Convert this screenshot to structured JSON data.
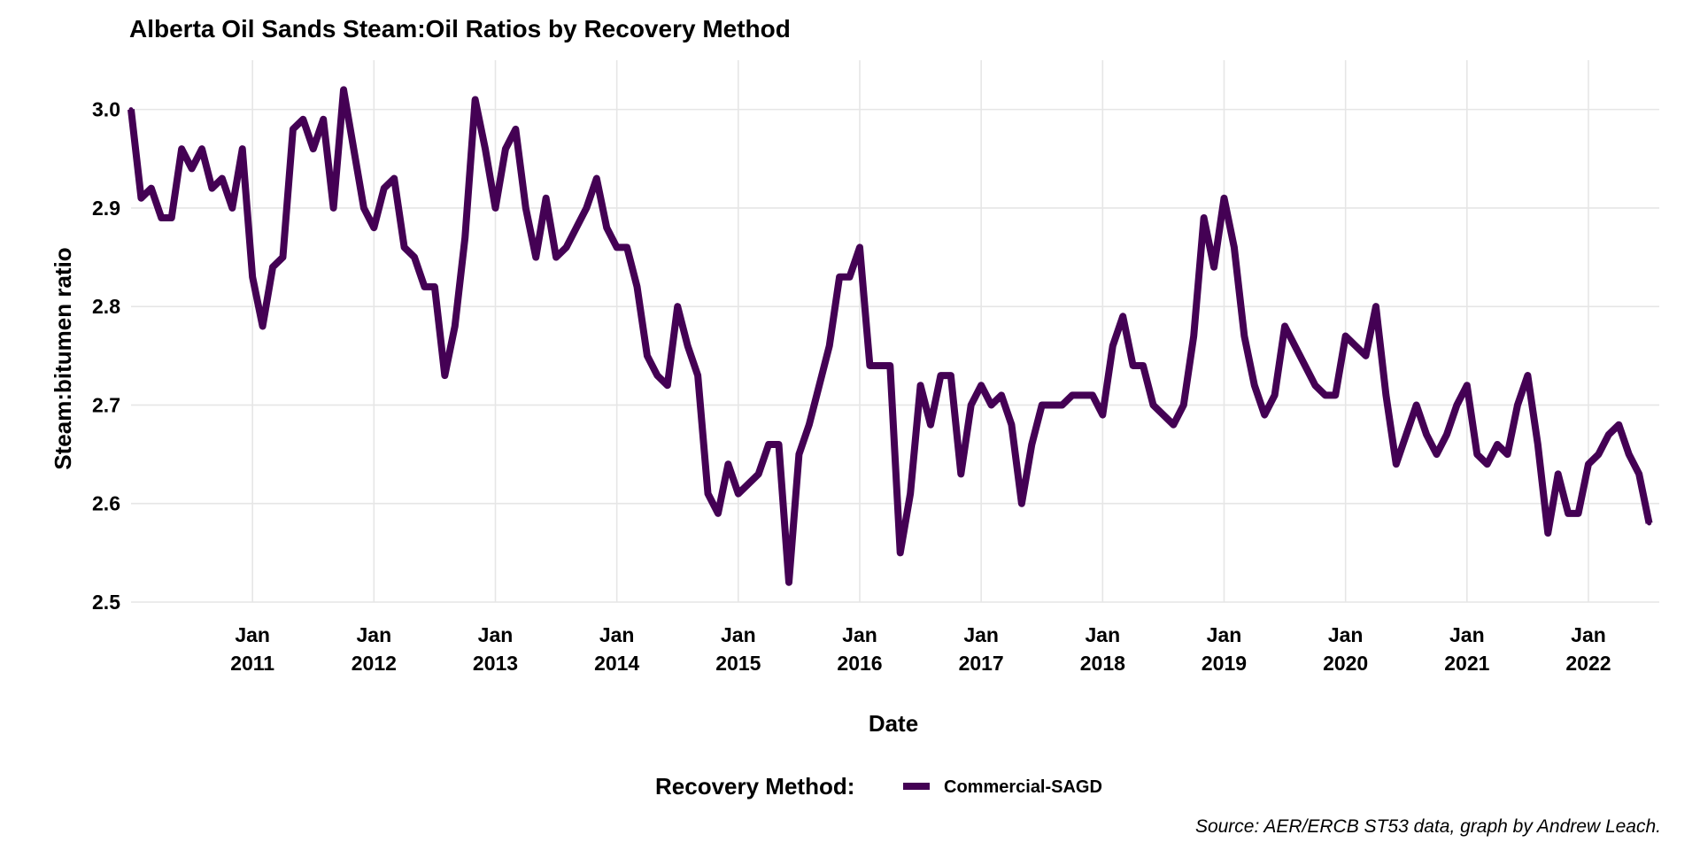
{
  "chart_data": {
    "type": "line",
    "title": "Alberta Oil Sands Steam:Oil Ratios by Recovery Method",
    "xlabel": "Date",
    "ylabel": "Steam:bitumen ratio",
    "ylim": [
      2.5,
      3.05
    ],
    "xlim": [
      "2010-01",
      "2022-08"
    ],
    "y_ticks": [
      "2.5",
      "2.6",
      "2.7",
      "2.8",
      "2.9",
      "3.0"
    ],
    "x_ticks": [
      {
        "line1": "Jan",
        "line2": "2011",
        "date": "2011-01"
      },
      {
        "line1": "Jan",
        "line2": "2012",
        "date": "2012-01"
      },
      {
        "line1": "Jan",
        "line2": "2013",
        "date": "2013-01"
      },
      {
        "line1": "Jan",
        "line2": "2014",
        "date": "2014-01"
      },
      {
        "line1": "Jan",
        "line2": "2015",
        "date": "2015-01"
      },
      {
        "line1": "Jan",
        "line2": "2016",
        "date": "2016-01"
      },
      {
        "line1": "Jan",
        "line2": "2017",
        "date": "2017-01"
      },
      {
        "line1": "Jan",
        "line2": "2018",
        "date": "2018-01"
      },
      {
        "line1": "Jan",
        "line2": "2019",
        "date": "2019-01"
      },
      {
        "line1": "Jan",
        "line2": "2020",
        "date": "2020-01"
      },
      {
        "line1": "Jan",
        "line2": "2021",
        "date": "2021-01"
      },
      {
        "line1": "Jan",
        "line2": "2022",
        "date": "2022-01"
      }
    ],
    "grid": true,
    "legend": {
      "title": "Recovery Method:",
      "position": "bottom"
    },
    "series": [
      {
        "name": "Commercial-SAGD",
        "color": "#440154",
        "start": "2010-01",
        "frequency": "monthly",
        "values": [
          3.0,
          2.91,
          2.92,
          2.89,
          2.89,
          2.96,
          2.94,
          2.96,
          2.92,
          2.93,
          2.9,
          2.96,
          2.83,
          2.78,
          2.84,
          2.85,
          2.98,
          2.99,
          2.96,
          2.99,
          2.9,
          3.02,
          2.96,
          2.9,
          2.88,
          2.92,
          2.93,
          2.86,
          2.85,
          2.82,
          2.82,
          2.73,
          2.78,
          2.87,
          3.01,
          2.96,
          2.9,
          2.96,
          2.98,
          2.9,
          2.85,
          2.91,
          2.85,
          2.86,
          2.88,
          2.9,
          2.93,
          2.88,
          2.86,
          2.86,
          2.82,
          2.75,
          2.73,
          2.72,
          2.8,
          2.76,
          2.73,
          2.61,
          2.59,
          2.64,
          2.61,
          2.62,
          2.63,
          2.66,
          2.66,
          2.52,
          2.65,
          2.68,
          2.72,
          2.76,
          2.83,
          2.83,
          2.86,
          2.74,
          2.74,
          2.74,
          2.55,
          2.61,
          2.72,
          2.68,
          2.73,
          2.73,
          2.63,
          2.7,
          2.72,
          2.7,
          2.71,
          2.68,
          2.6,
          2.66,
          2.7,
          2.7,
          2.7,
          2.71,
          2.71,
          2.71,
          2.69,
          2.76,
          2.79,
          2.74,
          2.74,
          2.7,
          2.69,
          2.68,
          2.7,
          2.77,
          2.89,
          2.84,
          2.91,
          2.86,
          2.77,
          2.72,
          2.69,
          2.71,
          2.78,
          2.76,
          2.74,
          2.72,
          2.71,
          2.71,
          2.77,
          2.76,
          2.75,
          2.8,
          2.71,
          2.64,
          2.67,
          2.7,
          2.67,
          2.65,
          2.67,
          2.7,
          2.72,
          2.65,
          2.64,
          2.66,
          2.65,
          2.7,
          2.73,
          2.66,
          2.57,
          2.63,
          2.59,
          2.59,
          2.64,
          2.65,
          2.67,
          2.68,
          2.65,
          2.63,
          2.58
        ]
      }
    ],
    "caption": "Source: AER/ERCB ST53 data, graph by Andrew Leach."
  }
}
